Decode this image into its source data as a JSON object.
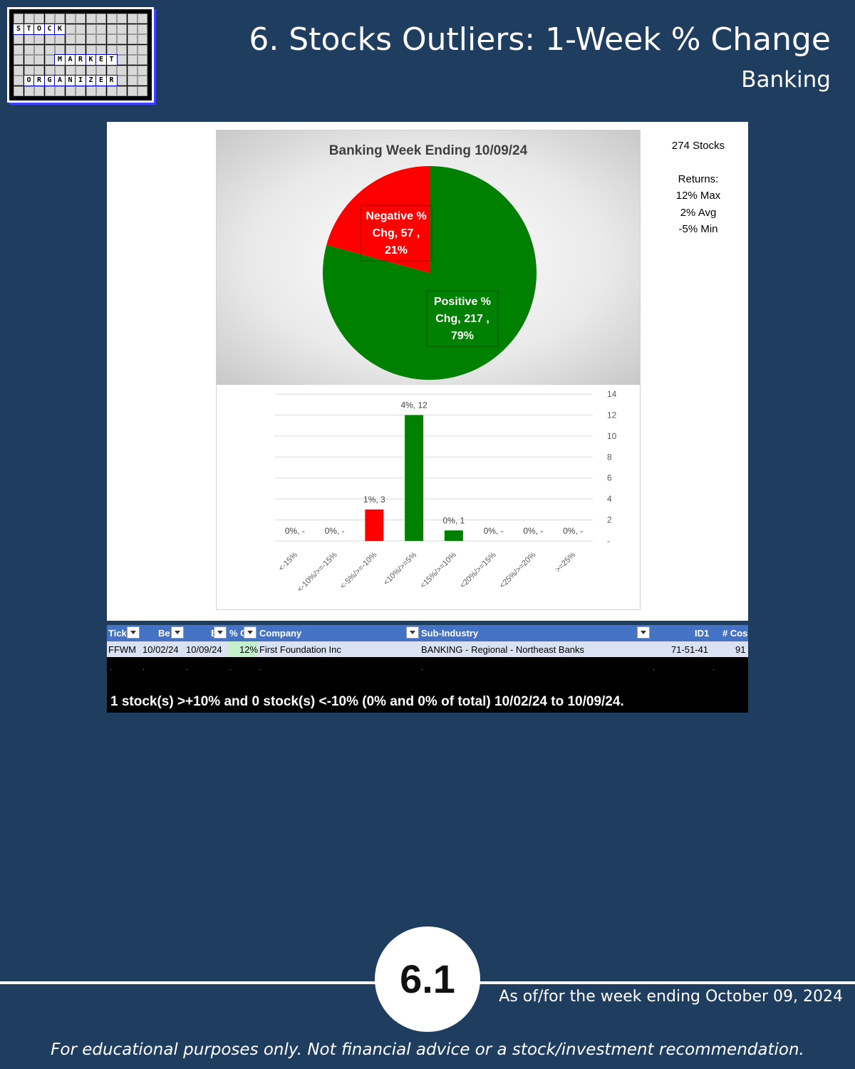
{
  "logo": {
    "rows": [
      {
        "letters": [
          "S",
          "T",
          "O",
          "C",
          "K"
        ]
      },
      {
        "letters": [
          "M",
          "A",
          "R",
          "K",
          "E",
          "T"
        ]
      },
      {
        "letters": [
          "O",
          "R",
          "G",
          "A",
          "N",
          "I",
          "Z",
          "E",
          "R"
        ]
      }
    ]
  },
  "header": {
    "title": "6. Stocks Outliers: 1-Week % Change",
    "subtitle": "Banking"
  },
  "stats": {
    "stocks": "274 Stocks",
    "returns_label": "Returns:",
    "max": "12% Max",
    "avg": "2% Avg",
    "min": "-5% Min"
  },
  "chart_data": [
    {
      "type": "pie",
      "title": "Banking Week Ending 10/09/24",
      "slices": [
        {
          "label_line1": "Negative %",
          "label_line2": "Chg,  57 ,",
          "label_line3": "21%",
          "name": "Negative % Chg",
          "value": 57,
          "percent": 21,
          "color": "#ff0000"
        },
        {
          "label_line1": "Positive %",
          "label_line2": "Chg,  217 ,",
          "label_line3": "79%",
          "name": "Positive % Chg",
          "value": 217,
          "percent": 79,
          "color": "#008000"
        }
      ]
    },
    {
      "type": "bar",
      "categories": [
        "<-15%",
        "<-10%/>=-15%",
        "<-5%/>=-10%",
        "<10%/>=5%",
        "<15%/>=10%",
        "<20%/>=15%",
        "<25%/>=20%",
        ">=25%"
      ],
      "values": [
        0,
        0,
        3,
        12,
        1,
        0,
        0,
        0
      ],
      "data_labels": [
        "0%,  -",
        "0%,  -",
        "1%,  3",
        "4%,  12",
        "0%,  1",
        "0%,  -",
        "0%,  -",
        "0%,  -"
      ],
      "colors": [
        "#ff0000",
        "#ff0000",
        "#ff0000",
        "#008000",
        "#008000",
        "#008000",
        "#008000",
        "#008000"
      ],
      "ylim": [
        0,
        14
      ],
      "yticks": [
        "-",
        "2",
        "4",
        "6",
        "8",
        "10",
        "12",
        "14"
      ],
      "ytick_values": [
        0,
        2,
        4,
        6,
        8,
        10,
        12,
        14
      ],
      "grid": true,
      "y_axis_side": "right"
    }
  ],
  "table": {
    "headers": {
      "ticker": "Tick",
      "begin": "Be",
      "end": "E",
      "pct": "% C",
      "company": "Company",
      "subindustry": "Sub-Industry",
      "id1": "ID1",
      "count": "# Cos"
    },
    "row": {
      "ticker": "FFWM",
      "begin": "10/02/24",
      "end": "10/09/24",
      "pct": "12%",
      "company": "First Foundation Inc",
      "subindustry": "BANKING - Regional - Northeast Banks",
      "id1": "71-51-41",
      "count": "91"
    },
    "summary": "1 stock(s) >+10% and 0 stock(s) <-10% (0% and 0% of total) 10/02/24 to 10/09/24."
  },
  "footer": {
    "page_number": "6.1",
    "asof": "As of/for the week ending October 09, 2024",
    "disclaimer": "For educational purposes only. Not financial advice or a stock/investment recommendation."
  }
}
